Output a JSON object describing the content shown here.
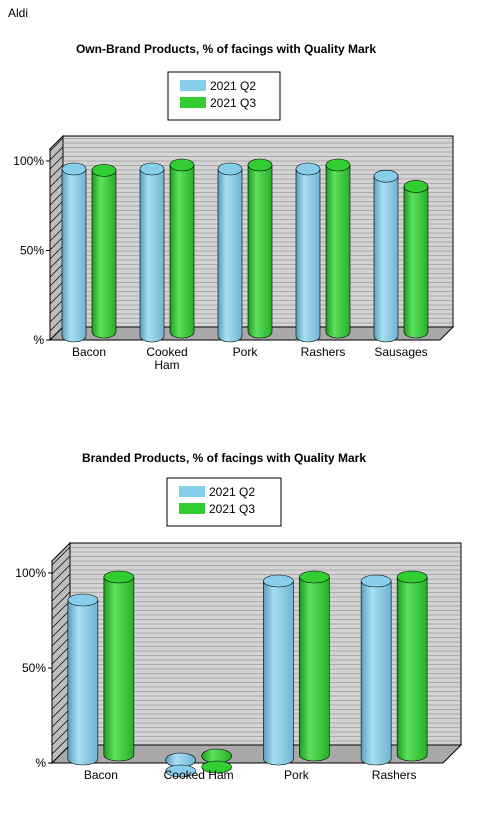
{
  "page": {
    "corner_label": "Aldi"
  },
  "colors": {
    "q2": "#87ceeb",
    "q3": "#32cd32",
    "grid": "#808080",
    "wall": "#d3d3d3",
    "floor": "#a9a9a9"
  },
  "chart_data": [
    {
      "type": "bar",
      "title": "Own-Brand Products, % of facings with Quality Mark",
      "categories": [
        "Bacon",
        "Cooked Ham",
        "Pork",
        "Rashers",
        "Sausages"
      ],
      "series": [
        {
          "name": "2021 Q2",
          "values": [
            100,
            100,
            100,
            100,
            96
          ]
        },
        {
          "name": "2021 Q3",
          "values": [
            97,
            100,
            100,
            100,
            88
          ]
        }
      ],
      "ylim": [
        0,
        100
      ],
      "yticks": [
        "%",
        "50%",
        "100%"
      ],
      "grid": true,
      "legend": "top-center",
      "style": "3d-cylinder"
    },
    {
      "type": "bar",
      "title": "Branded Products, % of facings with Quality Mark",
      "categories": [
        "Bacon",
        "Cooked Ham",
        "Pork",
        "Rashers"
      ],
      "series": [
        {
          "name": "2021 Q2",
          "values": [
            90,
            0,
            100,
            100
          ]
        },
        {
          "name": "2021 Q3",
          "values": [
            100,
            0,
            100,
            100
          ]
        }
      ],
      "ylim": [
        0,
        100
      ],
      "yticks": [
        "%",
        "50%",
        "100%"
      ],
      "grid": true,
      "legend": "top-center",
      "style": "3d-cylinder"
    }
  ]
}
